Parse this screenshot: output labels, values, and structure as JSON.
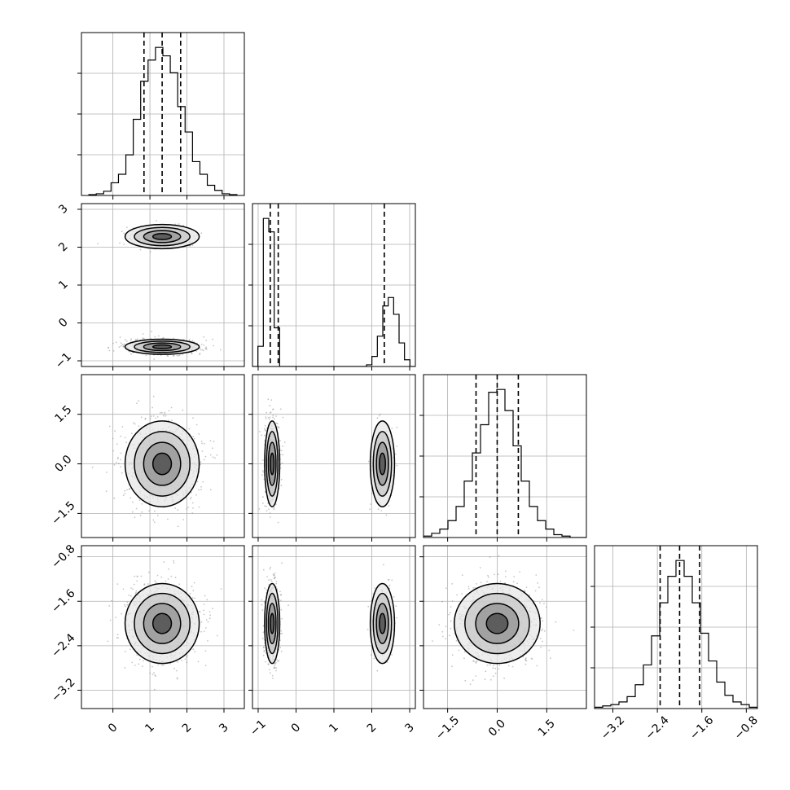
{
  "chart_data": {
    "type": "corner",
    "grid": true,
    "series_color": "#000000",
    "point_color": "#808080",
    "axis_ranges": [
      [
        -0.85,
        3.55
      ],
      [
        -1.15,
        3.15
      ],
      [
        -2.23,
        2.7
      ],
      [
        -3.53,
        -0.6
      ]
    ],
    "ticks": [
      [
        "0",
        "1",
        "2",
        "3"
      ],
      [
        "−1",
        "0",
        "1",
        "2",
        "3"
      ],
      [
        "−1.5",
        "0.0",
        "1.5"
      ],
      [
        "−3.2",
        "−2.4",
        "−1.6",
        "−0.8"
      ]
    ],
    "tick_values": [
      [
        0,
        1,
        2,
        3
      ],
      [
        -1,
        0,
        1,
        2,
        3
      ],
      [
        -1.5,
        0.0,
        1.5
      ],
      [
        -3.2,
        -2.4,
        -1.6,
        -0.8
      ]
    ],
    "quantiles": [
      [
        0.84,
        1.33,
        1.83
      ],
      [
        -0.68,
        -0.47,
        2.33
      ],
      [
        -0.64,
        0.0,
        0.64
      ],
      [
        -2.35,
        -2.0,
        -1.64
      ]
    ],
    "histograms": [
      {
        "edges": [
          -0.65,
          3.35
        ],
        "counts": [
          1,
          2,
          5,
          15,
          25,
          48,
          90,
          135,
          160,
          175,
          165,
          145,
          105,
          75,
          40,
          25,
          12,
          6,
          2,
          1
        ]
      },
      {
        "edges": [
          -1.15,
          3.15
        ],
        "counts": [
          0,
          12,
          88,
          80,
          23,
          0,
          0,
          0,
          0,
          0,
          0,
          0,
          0,
          0,
          0,
          0,
          0,
          0,
          0,
          0,
          0,
          1,
          6,
          18,
          36,
          41,
          31,
          14,
          4,
          0
        ]
      },
      {
        "edges": [
          -2.23,
          2.7
        ],
        "counts": [
          1,
          3,
          6,
          12,
          22,
          40,
          60,
          80,
          103,
          105,
          90,
          65,
          40,
          22,
          12,
          6,
          2,
          1,
          0,
          0
        ]
      },
      {
        "edges": [
          -3.53,
          -0.6
        ],
        "counts": [
          1,
          2,
          3,
          5,
          9,
          18,
          33,
          55,
          80,
          100,
          112,
          100,
          80,
          57,
          36,
          20,
          10,
          5,
          3,
          1
        ]
      }
    ],
    "blobs": [
      {
        "i": 1,
        "j": 0,
        "cx": 1.33,
        "cy": 2.28,
        "sx": 0.5,
        "sy": 0.16,
        "n": 180
      },
      {
        "i": 1,
        "j": 0,
        "cx": 1.33,
        "cy": -0.63,
        "sx": 0.5,
        "sy": 0.1,
        "n": 620
      },
      {
        "i": 2,
        "j": 0,
        "cx": 1.33,
        "cy": 0.0,
        "sx": 0.5,
        "sy": 0.65,
        "n": 800
      },
      {
        "i": 2,
        "j": 1,
        "cx": -0.63,
        "cy": 0.0,
        "sx": 0.1,
        "sy": 0.65,
        "n": 620
      },
      {
        "i": 2,
        "j": 1,
        "cx": 2.28,
        "cy": 0.0,
        "sx": 0.16,
        "sy": 0.65,
        "n": 180
      },
      {
        "i": 3,
        "j": 0,
        "cx": 1.33,
        "cy": -2.0,
        "sx": 0.5,
        "sy": 0.36,
        "n": 800
      },
      {
        "i": 3,
        "j": 1,
        "cx": -0.63,
        "cy": -2.0,
        "sx": 0.1,
        "sy": 0.36,
        "n": 620
      },
      {
        "i": 3,
        "j": 1,
        "cx": 2.28,
        "cy": -2.0,
        "sx": 0.16,
        "sy": 0.36,
        "n": 180
      },
      {
        "i": 3,
        "j": 2,
        "cx": 0.0,
        "cy": -2.0,
        "sx": 0.65,
        "sy": 0.36,
        "n": 800
      }
    ],
    "contour_levels": [
      0.5,
      1.0,
      1.5,
      2.0
    ],
    "xlabels": [
      "",
      "",
      "",
      ""
    ],
    "ylabels": [
      "",
      "",
      "",
      ""
    ],
    "title": ""
  }
}
